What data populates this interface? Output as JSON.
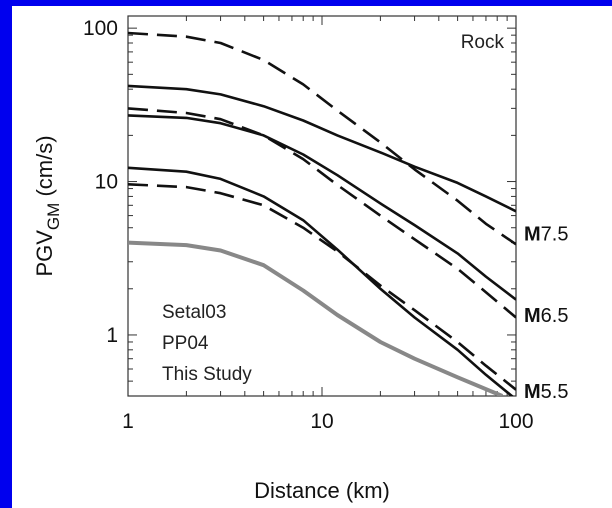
{
  "chart_data": {
    "type": "line",
    "xscale": "log",
    "yscale": "log",
    "xlim": [
      1,
      100
    ],
    "ylim": [
      0.4,
      120
    ],
    "xlabel": "Distance (km)",
    "ylabel_main": "PGV",
    "ylabel_sub": "GM",
    "ylabel_tail": " (cm/s)",
    "x_ticks": [
      1,
      10,
      100
    ],
    "x_tick_labels": [
      "1",
      "10",
      "100"
    ],
    "y_ticks": [
      1,
      10,
      100
    ],
    "y_tick_labels": [
      "1",
      "10",
      "100"
    ],
    "grid": false,
    "site_label": "Rock",
    "legend_labels": [
      "Setal03",
      "PP04",
      "This Study"
    ],
    "magnitude_labels": [
      {
        "bold": "M",
        "rest": "7.5",
        "y": 4.6
      },
      {
        "bold": "M",
        "rest": "6.5",
        "y": 1.35
      },
      {
        "bold": "M",
        "rest": "5.5",
        "y": 0.43
      }
    ],
    "series": [
      {
        "style": "dashed",
        "color": "#111111",
        "points": [
          [
            1,
            93
          ],
          [
            2,
            88
          ],
          [
            3,
            80
          ],
          [
            5,
            62
          ],
          [
            8,
            43
          ],
          [
            12,
            29
          ],
          [
            20,
            18
          ],
          [
            30,
            12
          ],
          [
            50,
            7.5
          ],
          [
            70,
            5.3
          ],
          [
            100,
            3.9
          ]
        ]
      },
      {
        "style": "solid",
        "color": "#111111",
        "points": [
          [
            1,
            42
          ],
          [
            2,
            40
          ],
          [
            3,
            37
          ],
          [
            5,
            31
          ],
          [
            8,
            25
          ],
          [
            12,
            20
          ],
          [
            20,
            15.5
          ],
          [
            30,
            12.5
          ],
          [
            50,
            9.8
          ],
          [
            70,
            8
          ],
          [
            100,
            6.4
          ]
        ]
      },
      {
        "style": "dashed",
        "color": "#111111",
        "points": [
          [
            1,
            30
          ],
          [
            2,
            28
          ],
          [
            3,
            25.5
          ],
          [
            5,
            20
          ],
          [
            8,
            14
          ],
          [
            12,
            9.5
          ],
          [
            20,
            6
          ],
          [
            30,
            4.2
          ],
          [
            50,
            2.7
          ],
          [
            70,
            1.9
          ],
          [
            100,
            1.3
          ]
        ]
      },
      {
        "style": "solid",
        "color": "#111111",
        "points": [
          [
            1,
            27
          ],
          [
            2,
            26
          ],
          [
            3,
            24
          ],
          [
            5,
            20
          ],
          [
            8,
            15
          ],
          [
            12,
            11
          ],
          [
            20,
            7.2
          ],
          [
            30,
            5.2
          ],
          [
            50,
            3.4
          ],
          [
            70,
            2.4
          ],
          [
            100,
            1.7
          ]
        ]
      },
      {
        "style": "dashed",
        "color": "#111111",
        "points": [
          [
            1,
            9.6
          ],
          [
            2,
            9.2
          ],
          [
            3,
            8.4
          ],
          [
            5,
            7
          ],
          [
            8,
            5
          ],
          [
            12,
            3.5
          ],
          [
            20,
            2.1
          ],
          [
            30,
            1.45
          ],
          [
            50,
            0.9
          ],
          [
            70,
            0.63
          ],
          [
            100,
            0.44
          ]
        ]
      },
      {
        "style": "solid",
        "color": "#111111",
        "points": [
          [
            1,
            12.3
          ],
          [
            2,
            11.6
          ],
          [
            3,
            10.4
          ],
          [
            5,
            8
          ],
          [
            8,
            5.6
          ],
          [
            12,
            3.6
          ],
          [
            20,
            2
          ],
          [
            30,
            1.3
          ],
          [
            50,
            0.8
          ],
          [
            70,
            0.55
          ],
          [
            100,
            0.38
          ]
        ]
      },
      {
        "style": "solid",
        "color": "#888888",
        "points": [
          [
            1,
            4
          ],
          [
            2,
            3.85
          ],
          [
            3,
            3.55
          ],
          [
            5,
            2.85
          ],
          [
            8,
            1.95
          ],
          [
            12,
            1.35
          ],
          [
            20,
            0.9
          ],
          [
            30,
            0.7
          ],
          [
            50,
            0.53
          ],
          [
            85,
            0.4
          ]
        ]
      }
    ]
  }
}
